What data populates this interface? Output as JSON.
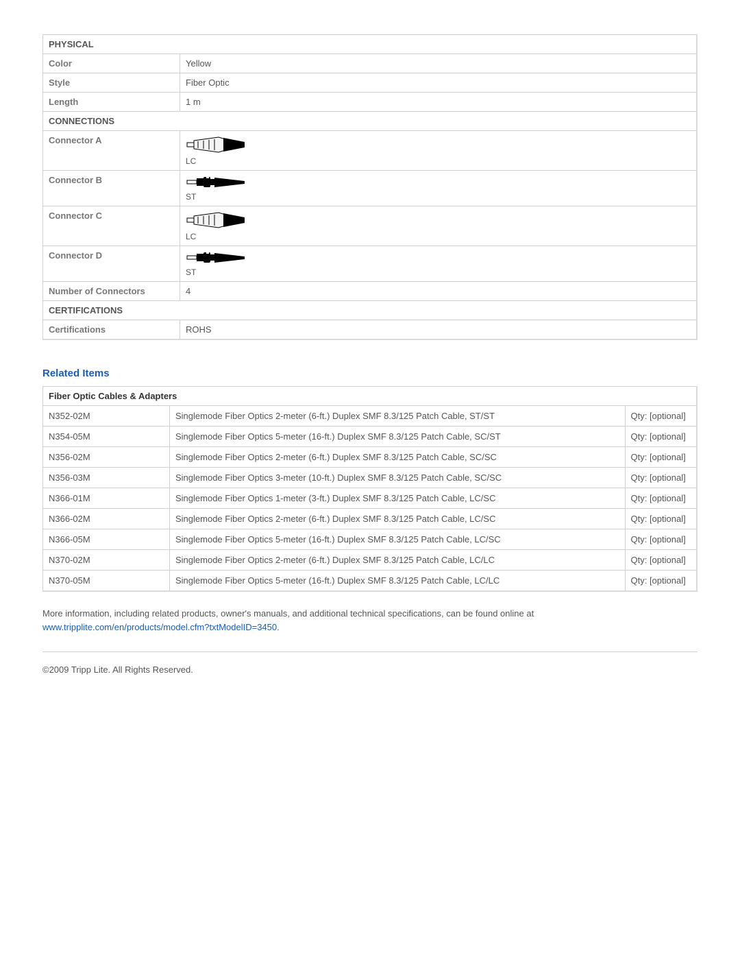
{
  "specs": {
    "physical": {
      "header": "PHYSICAL",
      "rows": [
        {
          "label": "Color",
          "value": "Yellow"
        },
        {
          "label": "Style",
          "value": "Fiber Optic"
        },
        {
          "label": "Length",
          "value": "1 m"
        }
      ]
    },
    "connections": {
      "header": "CONNECTIONS",
      "connectors": [
        {
          "label": "Connector A",
          "type": "LC"
        },
        {
          "label": "Connector B",
          "type": "ST"
        },
        {
          "label": "Connector C",
          "type": "LC"
        },
        {
          "label": "Connector D",
          "type": "ST"
        }
      ],
      "num_connectors": {
        "label": "Number of Connectors",
        "value": "4"
      }
    },
    "certifications": {
      "header": "CERTIFICATIONS",
      "rows": [
        {
          "label": "Certifications",
          "value": "ROHS"
        }
      ]
    }
  },
  "related": {
    "heading": "Related Items",
    "section_header": "Fiber Optic Cables & Adapters",
    "qty_label": "Qty: [optional]",
    "items": [
      {
        "sku": "N352-02M",
        "desc": "Singlemode Fiber Optics 2-meter (6-ft.) Duplex SMF 8.3/125 Patch Cable, ST/ST"
      },
      {
        "sku": "N354-05M",
        "desc": "Singlemode Fiber Optics 5-meter (16-ft.) Duplex SMF 8.3/125 Patch Cable, SC/ST"
      },
      {
        "sku": "N356-02M",
        "desc": "Singlemode Fiber Optics 2-meter (6-ft.) Duplex SMF 8.3/125 Patch Cable, SC/SC"
      },
      {
        "sku": "N356-03M",
        "desc": "Singlemode Fiber Optics 3-meter (10-ft.) Duplex SMF 8.3/125 Patch Cable, SC/SC"
      },
      {
        "sku": "N366-01M",
        "desc": "Singlemode Fiber Optics 1-meter (3-ft.) Duplex SMF 8.3/125 Patch Cable, LC/SC"
      },
      {
        "sku": "N366-02M",
        "desc": "Singlemode Fiber Optics 2-meter (6-ft.) Duplex SMF 8.3/125 Patch Cable, LC/SC"
      },
      {
        "sku": "N366-05M",
        "desc": "Singlemode Fiber Optics 5-meter (16-ft.) Duplex SMF 8.3/125 Patch Cable, LC/SC"
      },
      {
        "sku": "N370-02M",
        "desc": "Singlemode Fiber Optics 2-meter (6-ft.) Duplex SMF 8.3/125 Patch Cable, LC/LC"
      },
      {
        "sku": "N370-05M",
        "desc": "Singlemode Fiber Optics 5-meter (16-ft.) Duplex SMF 8.3/125 Patch Cable, LC/LC"
      }
    ]
  },
  "more_info": {
    "text": "More information, including related products, owner's manuals, and additional technical specifications, can be found online at ",
    "link_text": "www.tripplite.com/en/products/model.cfm?txtModelID=3450",
    "suffix": "."
  },
  "copyright": "©2009 Tripp Lite.  All Rights Reserved."
}
